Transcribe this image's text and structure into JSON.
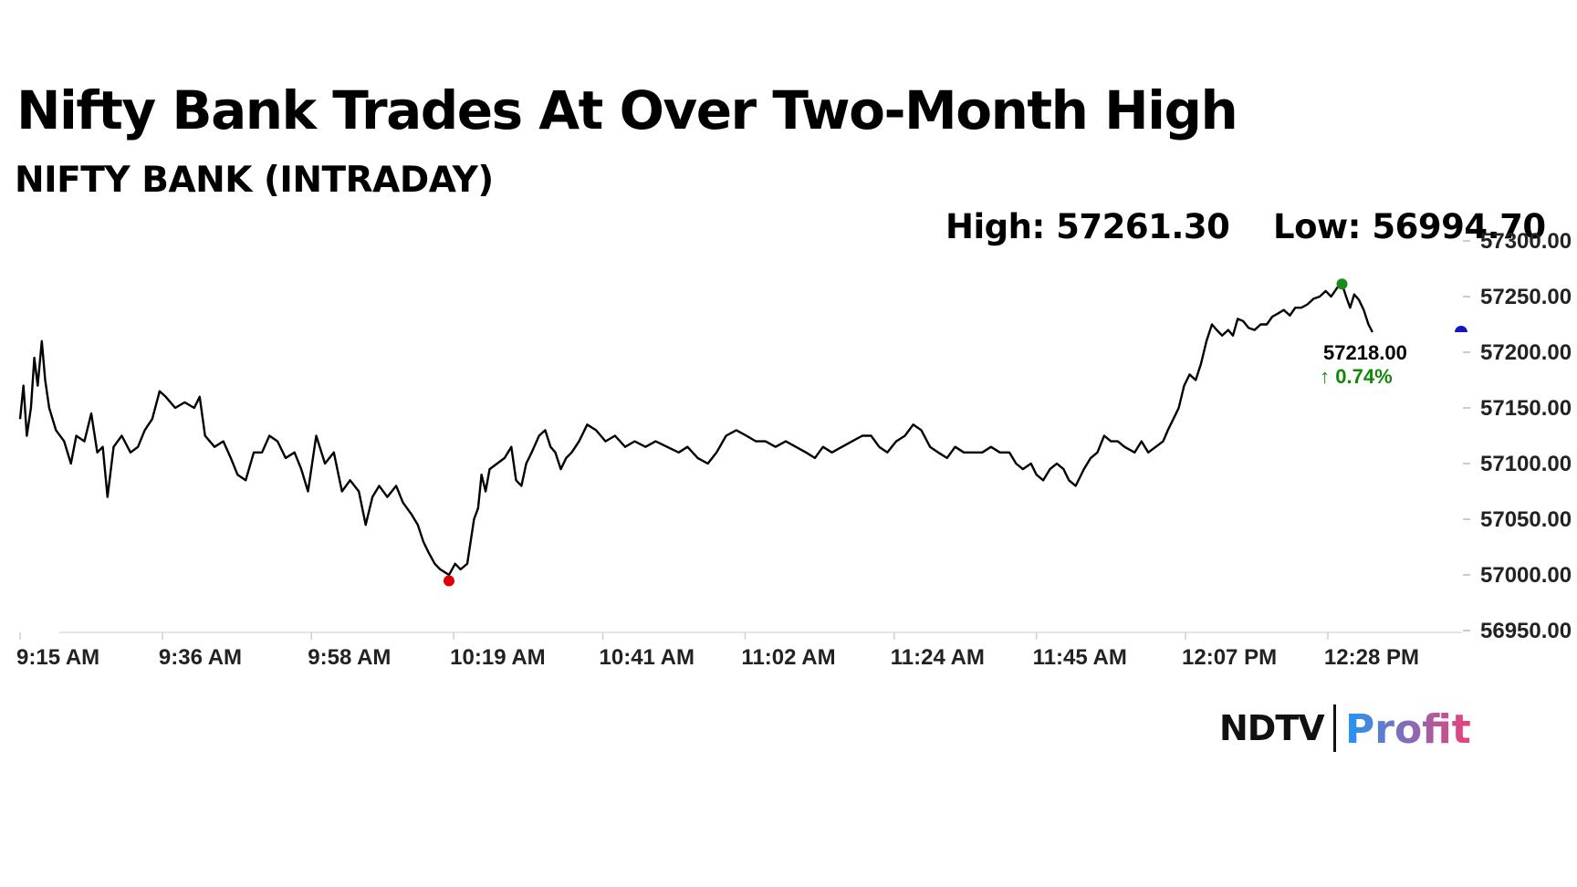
{
  "header": {
    "title": "Nifty Bank Trades At Over Two-Month High",
    "subtitle": "NIFTY BANK (INTRADAY)",
    "high_label": "High: 57261.30",
    "low_label": "Low: 56994.70"
  },
  "logo": {
    "ndtv": "NDTV",
    "profit": "Profit",
    "ndtv_dot_color": "#e31e24",
    "profit_gradient": [
      "#2196f3",
      "#ec407a"
    ]
  },
  "chart_data": {
    "type": "line",
    "ylim": [
      56950,
      57300
    ],
    "yticks": [
      "57300.00",
      "57250.00",
      "57200.00",
      "57150.00",
      "57100.00",
      "57050.00",
      "57000.00",
      "56950.00"
    ],
    "ytick_values": [
      57300,
      57250,
      57200,
      57150,
      57100,
      57050,
      57000,
      56950
    ],
    "xticks": [
      "9:15 AM",
      "9:36 AM",
      "9:58 AM",
      "10:19 AM",
      "10:41 AM",
      "11:02 AM",
      "11:24 AM",
      "11:45 AM",
      "12:07 PM",
      "12:28 PM"
    ],
    "xtick_minutes": [
      555,
      576,
      598,
      619,
      641,
      662,
      684,
      705,
      727,
      748
    ],
    "xlim_minutes": [
      555,
      767
    ],
    "grid": false,
    "line_color": "#000000",
    "points": [
      [
        555.0,
        57140
      ],
      [
        555.5,
        57170
      ],
      [
        556.0,
        57125
      ],
      [
        556.6,
        57150
      ],
      [
        557.1,
        57195
      ],
      [
        557.6,
        57170
      ],
      [
        558.2,
        57210
      ],
      [
        558.7,
        57175
      ],
      [
        559.3,
        57150
      ],
      [
        560.3,
        57130
      ],
      [
        561.5,
        57120
      ],
      [
        562.5,
        57100
      ],
      [
        563.3,
        57125
      ],
      [
        564.5,
        57120
      ],
      [
        565.5,
        57145
      ],
      [
        566.4,
        57110
      ],
      [
        567.2,
        57115
      ],
      [
        567.9,
        57070
      ],
      [
        568.8,
        57115
      ],
      [
        570.0,
        57125
      ],
      [
        571.3,
        57110
      ],
      [
        572.4,
        57115
      ],
      [
        573.4,
        57130
      ],
      [
        574.5,
        57140
      ],
      [
        575.6,
        57165
      ],
      [
        576.5,
        57160
      ],
      [
        577.9,
        57150
      ],
      [
        579.3,
        57155
      ],
      [
        580.7,
        57150
      ],
      [
        581.5,
        57160
      ],
      [
        582.3,
        57125
      ],
      [
        583.7,
        57115
      ],
      [
        585.0,
        57120
      ],
      [
        586.1,
        57105
      ],
      [
        587.1,
        57090
      ],
      [
        588.3,
        57085
      ],
      [
        589.5,
        57110
      ],
      [
        590.7,
        57110
      ],
      [
        591.8,
        57125
      ],
      [
        593.0,
        57120
      ],
      [
        594.2,
        57105
      ],
      [
        595.5,
        57110
      ],
      [
        596.5,
        57095
      ],
      [
        597.5,
        57075
      ],
      [
        598.7,
        57125
      ],
      [
        600.0,
        57100
      ],
      [
        601.3,
        57110
      ],
      [
        602.5,
        57075
      ],
      [
        603.7,
        57085
      ],
      [
        605.0,
        57075
      ],
      [
        606.0,
        57045
      ],
      [
        607.0,
        57070
      ],
      [
        608.0,
        57080
      ],
      [
        609.2,
        57070
      ],
      [
        610.5,
        57080
      ],
      [
        611.5,
        57065
      ],
      [
        612.7,
        57055
      ],
      [
        613.7,
        57045
      ],
      [
        614.5,
        57030
      ],
      [
        615.3,
        57020
      ],
      [
        616.2,
        57010
      ],
      [
        617.0,
        57005
      ],
      [
        618.3,
        57000
      ],
      [
        619.2,
        57010
      ],
      [
        620.0,
        57005
      ],
      [
        621.0,
        57010
      ],
      [
        621.5,
        57030
      ],
      [
        622.0,
        57050
      ],
      [
        622.6,
        57060
      ],
      [
        623.1,
        57090
      ],
      [
        623.7,
        57075
      ],
      [
        624.3,
        57095
      ],
      [
        625.4,
        57100
      ],
      [
        626.5,
        57105
      ],
      [
        627.5,
        57115
      ],
      [
        628.2,
        57085
      ],
      [
        629.0,
        57080
      ],
      [
        629.7,
        57100
      ],
      [
        630.5,
        57110
      ],
      [
        631.6,
        57125
      ],
      [
        632.5,
        57130
      ],
      [
        633.3,
        57115
      ],
      [
        634.0,
        57110
      ],
      [
        634.8,
        57095
      ],
      [
        635.6,
        57105
      ],
      [
        636.4,
        57110
      ],
      [
        637.5,
        57120
      ],
      [
        638.7,
        57135
      ],
      [
        640.0,
        57130
      ],
      [
        641.4,
        57120
      ],
      [
        642.8,
        57125
      ],
      [
        644.3,
        57115
      ],
      [
        645.7,
        57120
      ],
      [
        647.3,
        57115
      ],
      [
        648.8,
        57120
      ],
      [
        650.5,
        57115
      ],
      [
        652.2,
        57110
      ],
      [
        653.5,
        57115
      ],
      [
        655.0,
        57105
      ],
      [
        656.5,
        57100
      ],
      [
        657.8,
        57110
      ],
      [
        659.2,
        57125
      ],
      [
        660.7,
        57130
      ],
      [
        662.2,
        57125
      ],
      [
        663.6,
        57120
      ],
      [
        665.0,
        57120
      ],
      [
        666.5,
        57115
      ],
      [
        668.0,
        57120
      ],
      [
        669.5,
        57115
      ],
      [
        671.0,
        57110
      ],
      [
        672.3,
        57105
      ],
      [
        673.5,
        57115
      ],
      [
        674.8,
        57110
      ],
      [
        676.3,
        57115
      ],
      [
        677.8,
        57120
      ],
      [
        679.3,
        57125
      ],
      [
        680.6,
        57125
      ],
      [
        681.8,
        57115
      ],
      [
        683.0,
        57110
      ],
      [
        684.3,
        57120
      ],
      [
        685.6,
        57125
      ],
      [
        686.8,
        57135
      ],
      [
        688.0,
        57130
      ],
      [
        689.3,
        57115
      ],
      [
        690.5,
        57110
      ],
      [
        691.8,
        57105
      ],
      [
        693.0,
        57115
      ],
      [
        694.3,
        57110
      ],
      [
        695.8,
        57110
      ],
      [
        697.0,
        57110
      ],
      [
        698.3,
        57115
      ],
      [
        699.6,
        57110
      ],
      [
        701.0,
        57110
      ],
      [
        702.0,
        57100
      ],
      [
        703.0,
        57095
      ],
      [
        704.2,
        57100
      ],
      [
        705.0,
        57090
      ],
      [
        706.0,
        57085
      ],
      [
        707.0,
        57095
      ],
      [
        708.0,
        57100
      ],
      [
        709.0,
        57095
      ],
      [
        709.8,
        57085
      ],
      [
        710.8,
        57080
      ],
      [
        712.0,
        57095
      ],
      [
        713.0,
        57105
      ],
      [
        714.0,
        57110
      ],
      [
        715.0,
        57125
      ],
      [
        716.0,
        57120
      ],
      [
        717.0,
        57120
      ],
      [
        718.0,
        57115
      ],
      [
        719.5,
        57110
      ],
      [
        720.5,
        57120
      ],
      [
        721.5,
        57110
      ],
      [
        722.6,
        57115
      ],
      [
        723.7,
        57120
      ],
      [
        724.4,
        57130
      ],
      [
        725.2,
        57140
      ],
      [
        726.0,
        57150
      ],
      [
        726.8,
        57170
      ],
      [
        727.6,
        57180
      ],
      [
        728.5,
        57175
      ],
      [
        729.3,
        57190
      ],
      [
        730.1,
        57210
      ],
      [
        730.9,
        57225
      ],
      [
        731.6,
        57220
      ],
      [
        732.4,
        57215
      ],
      [
        733.3,
        57220
      ],
      [
        734.0,
        57215
      ],
      [
        734.7,
        57230
      ],
      [
        735.5,
        57228
      ],
      [
        736.3,
        57222
      ],
      [
        737.2,
        57220
      ],
      [
        738.1,
        57225
      ],
      [
        739.0,
        57225
      ],
      [
        739.8,
        57232
      ],
      [
        740.7,
        57235
      ],
      [
        741.5,
        57238
      ],
      [
        742.4,
        57233
      ],
      [
        743.2,
        57240
      ],
      [
        744.1,
        57240
      ],
      [
        745.0,
        57243
      ],
      [
        745.9,
        57248
      ],
      [
        746.8,
        57250
      ],
      [
        747.7,
        57255
      ],
      [
        748.5,
        57250
      ],
      [
        749.4,
        57258
      ],
      [
        750.1,
        57261.3
      ],
      [
        750.7,
        57250
      ],
      [
        751.3,
        57240
      ],
      [
        751.9,
        57252
      ],
      [
        752.6,
        57247
      ],
      [
        753.3,
        57238
      ],
      [
        754.0,
        57225
      ],
      [
        754.6,
        57218
      ]
    ],
    "high_point": {
      "x": 750.1,
      "y": 57261.3,
      "color": "#1a8a1a"
    },
    "low_point": {
      "x": 618.3,
      "y": 56994.7,
      "color": "#e00000"
    },
    "last_price": "57218.00",
    "last_value": 57218,
    "change": "0.74%",
    "change_color": "#138808",
    "current_marker_color": "#1515c8"
  }
}
